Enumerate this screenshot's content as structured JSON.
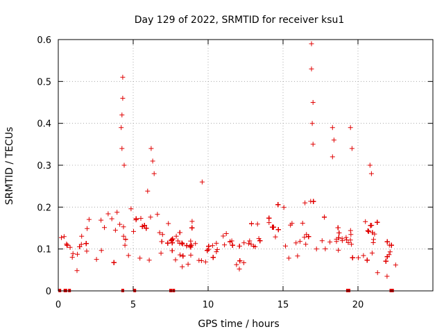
{
  "chart_data": {
    "type": "scatter",
    "title": "Day 129 of 2022, SRMTID for receiver ksu1",
    "xlabel": "GPS time / hours",
    "ylabel": "SRMTID / TECUs",
    "xlim": [
      0,
      25
    ],
    "ylim": [
      0,
      0.6
    ],
    "xticks": [
      0,
      5,
      10,
      15,
      20
    ],
    "yticks": [
      0,
      0.1,
      0.2,
      0.3,
      0.4,
      0.5,
      0.6
    ],
    "xtick_labels": [
      "0",
      "5",
      "10",
      "15",
      "20"
    ],
    "ytick_labels": [
      "0",
      "0.1",
      "0.2",
      "0.3",
      "0.4",
      "0.5",
      "0.6"
    ],
    "grid": true,
    "marker": "+",
    "marker_color": "#e00000",
    "series": [
      {
        "name": "SRMTID",
        "envelope": [
          {
            "x": 0.0,
            "base": 0.1,
            "spread": 0.05
          },
          {
            "x": 1.0,
            "base": 0.09,
            "spread": 0.05
          },
          {
            "x": 2.0,
            "base": 0.11,
            "spread": 0.05
          },
          {
            "x": 3.0,
            "base": 0.13,
            "spread": 0.05
          },
          {
            "x": 4.0,
            "base": 0.15,
            "spread": 0.07
          },
          {
            "x": 5.0,
            "base": 0.16,
            "spread": 0.07
          },
          {
            "x": 6.0,
            "base": 0.15,
            "spread": 0.07
          },
          {
            "x": 7.0,
            "base": 0.12,
            "spread": 0.05
          },
          {
            "x": 8.0,
            "base": 0.1,
            "spread": 0.04
          },
          {
            "x": 9.0,
            "base": 0.11,
            "spread": 0.05
          },
          {
            "x": 10.0,
            "base": 0.09,
            "spread": 0.04
          },
          {
            "x": 11.0,
            "base": 0.1,
            "spread": 0.05
          },
          {
            "x": 12.0,
            "base": 0.07,
            "spread": 0.03
          },
          {
            "x": 13.0,
            "base": 0.12,
            "spread": 0.05
          },
          {
            "x": 14.0,
            "base": 0.17,
            "spread": 0.06
          },
          {
            "x": 15.0,
            "base": 0.16,
            "spread": 0.06
          },
          {
            "x": 16.0,
            "base": 0.13,
            "spread": 0.06
          },
          {
            "x": 17.0,
            "base": 0.17,
            "spread": 0.07
          },
          {
            "x": 18.0,
            "base": 0.15,
            "spread": 0.06
          },
          {
            "x": 19.0,
            "base": 0.1,
            "spread": 0.04
          },
          {
            "x": 20.0,
            "base": 0.13,
            "spread": 0.05
          },
          {
            "x": 21.0,
            "base": 0.12,
            "spread": 0.05
          },
          {
            "x": 22.0,
            "base": 0.08,
            "spread": 0.04
          },
          {
            "x": 22.8,
            "base": 0.09,
            "spread": 0.04
          }
        ],
        "spikes": [
          {
            "x": 4.3,
            "y": 0.51
          },
          {
            "x": 4.3,
            "y": 0.46
          },
          {
            "x": 4.25,
            "y": 0.42
          },
          {
            "x": 4.2,
            "y": 0.39
          },
          {
            "x": 4.25,
            "y": 0.34
          },
          {
            "x": 4.4,
            "y": 0.3
          },
          {
            "x": 6.2,
            "y": 0.34
          },
          {
            "x": 6.3,
            "y": 0.31
          },
          {
            "x": 6.4,
            "y": 0.28
          },
          {
            "x": 9.6,
            "y": 0.26
          },
          {
            "x": 16.9,
            "y": 0.59
          },
          {
            "x": 16.9,
            "y": 0.53
          },
          {
            "x": 17.0,
            "y": 0.45
          },
          {
            "x": 16.95,
            "y": 0.4
          },
          {
            "x": 17.0,
            "y": 0.35
          },
          {
            "x": 18.3,
            "y": 0.39
          },
          {
            "x": 18.4,
            "y": 0.36
          },
          {
            "x": 18.3,
            "y": 0.32
          },
          {
            "x": 19.5,
            "y": 0.39
          },
          {
            "x": 19.6,
            "y": 0.34
          },
          {
            "x": 20.8,
            "y": 0.3
          },
          {
            "x": 20.9,
            "y": 0.28
          }
        ],
        "zero_markers_x": [
          0.1,
          0.45,
          0.5,
          0.75,
          4.3,
          5.1,
          7.5,
          7.7,
          19.3,
          19.4,
          22.2,
          22.3
        ]
      }
    ]
  }
}
